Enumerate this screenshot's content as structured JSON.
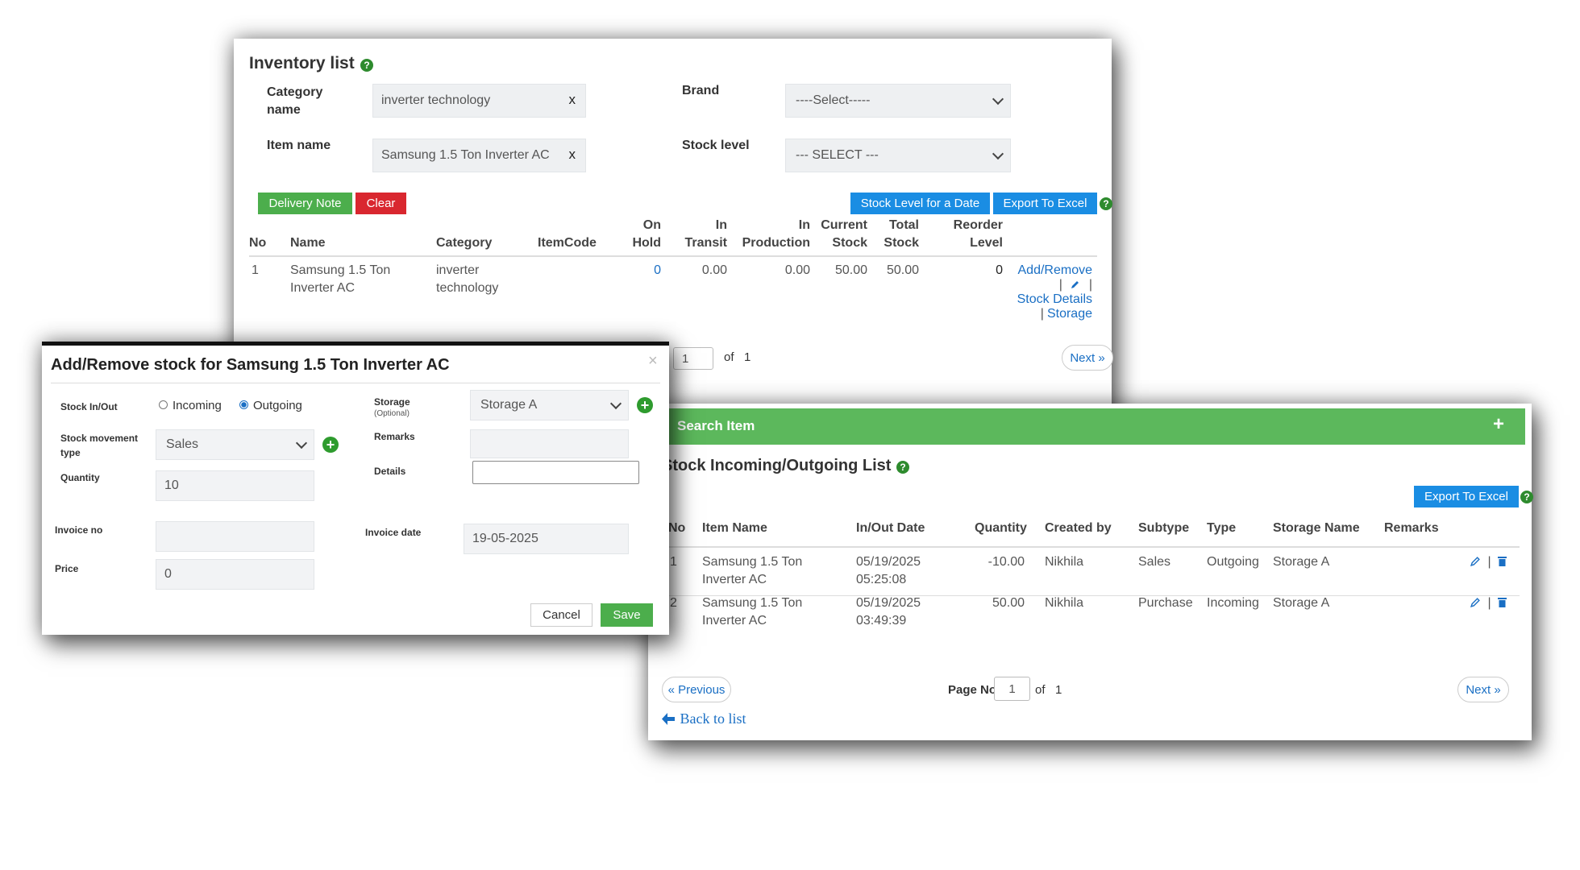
{
  "inventory": {
    "title": "Inventory list",
    "category_label": "Category\nname",
    "category_value": "inverter technology",
    "item_label": "Item name",
    "item_value": "Samsung 1.5 Ton Inverter AC",
    "clear_x": "x",
    "brand_label": "Brand",
    "brand_value": "----Select-----",
    "stock_level_label": "Stock level",
    "stock_level_value": "--- SELECT ---",
    "btn_delivery": "Delivery Note",
    "btn_clear": "Clear",
    "btn_stock_level_date": "Stock Level for a Date",
    "btn_export": "Export To Excel",
    "help": "?",
    "columns": {
      "no": "No",
      "name": "Name",
      "category": "Category",
      "itemcode": "ItemCode",
      "onhold": "On\nHold",
      "intransit": "In\nTransit",
      "inproduction": "In\nProduction",
      "current": "Current\nStock",
      "total": "Total\nStock",
      "reorder": "Reorder\nLevel"
    },
    "row": {
      "no": "1",
      "name": "Samsung 1.5 Ton\nInverter AC",
      "category": "inverter\ntechnology",
      "onhold": "0",
      "intransit": "0.00",
      "inproduction": "0.00",
      "current": "50.00",
      "total": "50.00",
      "reorder": "0"
    },
    "actions": {
      "add_remove": "Add/Remove",
      "sep": "|",
      "stock_details": "Stock Details",
      "storage": "Storage"
    },
    "page_value": "1",
    "of_label": "of",
    "of_total": "1",
    "next": "Next »"
  },
  "modal": {
    "title": "Add/Remove stock for Samsung 1.5 Ton Inverter AC",
    "close": "×",
    "stock_inout_label": "Stock In/Out",
    "incoming": "Incoming",
    "outgoing": "Outgoing",
    "storage_label": "Storage",
    "storage_optional": "(Optional)",
    "storage_value": "Storage A",
    "movement_label": "Stock movement\ntype",
    "movement_value": "Sales",
    "remarks_label": "Remarks",
    "quantity_label": "Quantity",
    "quantity_value": "10",
    "details_label": "Details",
    "invoice_no_label": "Invoice no",
    "invoice_date_label": "Invoice date",
    "invoice_date_value": "19-05-2025",
    "price_label": "Price",
    "price_value": "0",
    "cancel": "Cancel",
    "save": "Save"
  },
  "stocklist": {
    "search_header": "Search Item",
    "plus": "+",
    "title": "Stock Incoming/Outgoing List",
    "export": "Export To Excel",
    "columns": {
      "no": "No",
      "item": "Item Name",
      "date": "In/Out Date",
      "qty": "Quantity",
      "created": "Created by",
      "subtype": "Subtype",
      "type": "Type",
      "storage": "Storage Name",
      "remarks": "Remarks"
    },
    "rows": [
      {
        "no": "1",
        "item": "Samsung 1.5 Ton\nInverter AC",
        "date": "05/19/2025\n05:25:08",
        "qty": "-10.00",
        "created": "Nikhila",
        "subtype": "Sales",
        "type": "Outgoing",
        "storage": "Storage A"
      },
      {
        "no": "2",
        "item": "Samsung 1.5 Ton\nInverter AC",
        "date": "05/19/2025\n03:49:39",
        "qty": "50.00",
        "created": "Nikhila",
        "subtype": "Purchase",
        "type": "Incoming",
        "storage": "Storage A"
      }
    ],
    "sep": "|",
    "previous": "« Previous",
    "page_no_label": "Page No",
    "page_value": "1",
    "of_label": "of",
    "of_total": "1",
    "next": "Next »",
    "back": "Back to list"
  },
  "colors": {
    "green": "#4cae4c",
    "red": "#d9272f",
    "blue": "#1a8de3",
    "link": "#1a6fc4"
  }
}
